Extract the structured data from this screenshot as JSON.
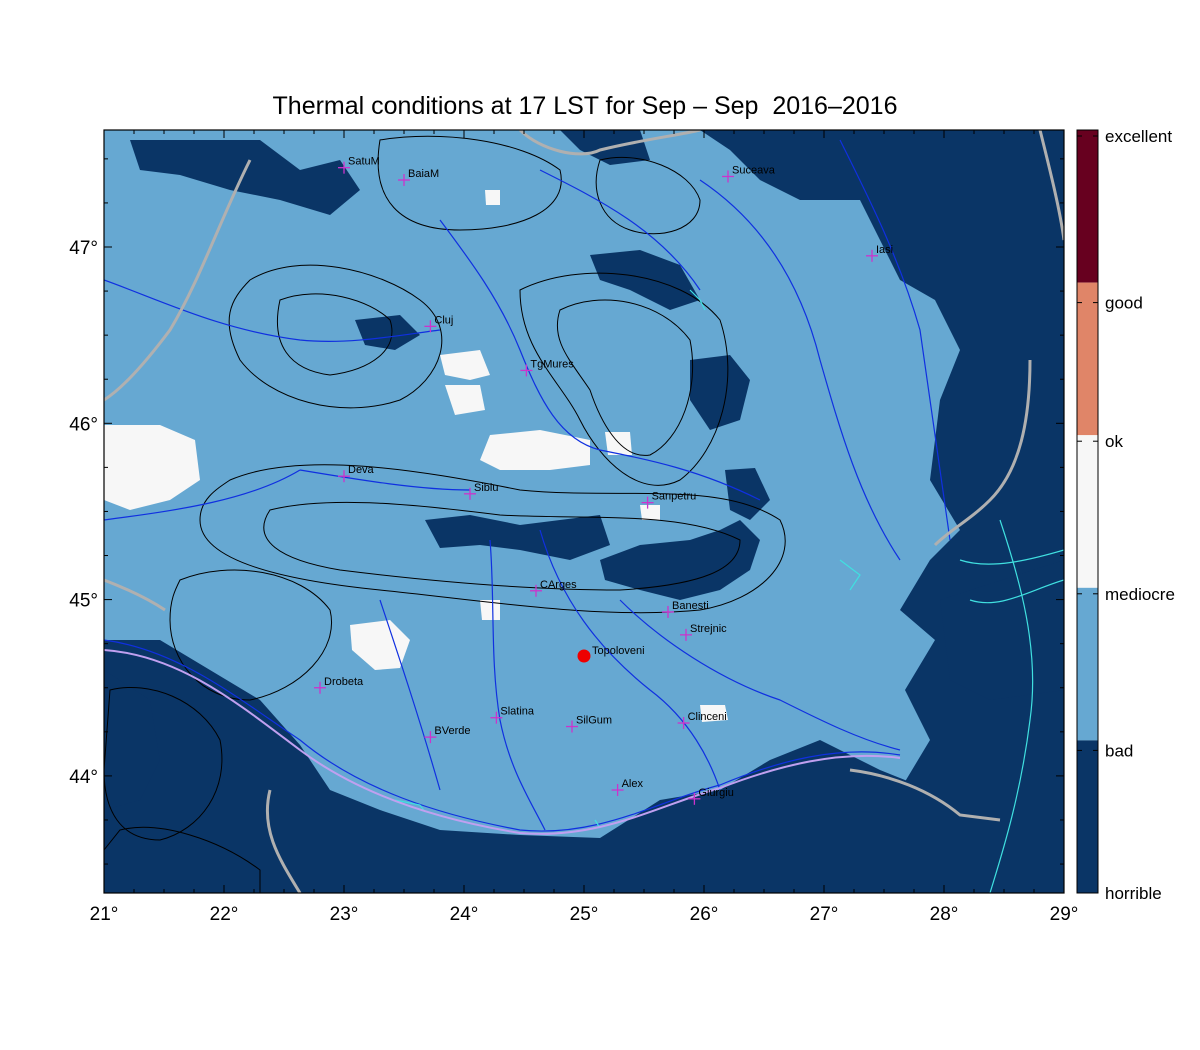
{
  "title": "Thermal conditions at 17 LST for Sep – Sep  2016–2016",
  "x_ticks": [
    "21°",
    "22°",
    "23°",
    "24°",
    "25°",
    "26°",
    "27°",
    "28°",
    "29°"
  ],
  "y_ticks": [
    "47°",
    "46°",
    "45°",
    "44°"
  ],
  "colorbar": {
    "labels": [
      "excellent",
      "good",
      "ok",
      "mediocre",
      "bad",
      "horrible"
    ],
    "colors": {
      "excellent": "#67001f",
      "good": "#e08568",
      "ok": "#f7f7f7",
      "bad": "#66a8d2",
      "horrible": "#0a3566"
    }
  },
  "colors": {
    "land_bad": "#66a8d2",
    "horrible": "#0a3566",
    "ok": "#f7f7f7",
    "rivers": "#1030e0",
    "borders": "#b0b0b0",
    "contours": "#000000",
    "coast": "#40e0e0",
    "danube": "#c0a0f0",
    "station_marker": "#cc33cc",
    "highlight": "#ee0000"
  },
  "stations": [
    {
      "name": "SatuM",
      "lon": 23.0,
      "lat": 47.45
    },
    {
      "name": "BaiaM",
      "lon": 23.5,
      "lat": 47.38
    },
    {
      "name": "Suceava",
      "lon": 26.2,
      "lat": 47.4
    },
    {
      "name": "Iasi",
      "lon": 27.4,
      "lat": 46.95
    },
    {
      "name": "Cluj",
      "lon": 23.72,
      "lat": 46.55
    },
    {
      "name": "TgMures",
      "lon": 24.52,
      "lat": 46.3
    },
    {
      "name": "Deva",
      "lon": 23.0,
      "lat": 45.7
    },
    {
      "name": "Sibiu",
      "lon": 24.05,
      "lat": 45.6
    },
    {
      "name": "Sanpetru",
      "lon": 25.53,
      "lat": 45.55
    },
    {
      "name": "CArges",
      "lon": 24.6,
      "lat": 45.05
    },
    {
      "name": "Banesti",
      "lon": 25.7,
      "lat": 44.93
    },
    {
      "name": "Strejnic",
      "lon": 25.85,
      "lat": 44.8
    },
    {
      "name": "Drobeta",
      "lon": 22.8,
      "lat": 44.5
    },
    {
      "name": "BVerde",
      "lon": 23.72,
      "lat": 44.22
    },
    {
      "name": "Slatina",
      "lon": 24.27,
      "lat": 44.33
    },
    {
      "name": "SilGum",
      "lon": 24.9,
      "lat": 44.28
    },
    {
      "name": "Clinceni",
      "lon": 25.83,
      "lat": 44.3
    },
    {
      "name": "Alex",
      "lon": 25.28,
      "lat": 43.92
    },
    {
      "name": "Giurgiu",
      "lon": 25.92,
      "lat": 43.87
    }
  ],
  "highlight_station": {
    "name": "Topoloveni",
    "lon": 25.0,
    "lat": 44.68
  }
}
